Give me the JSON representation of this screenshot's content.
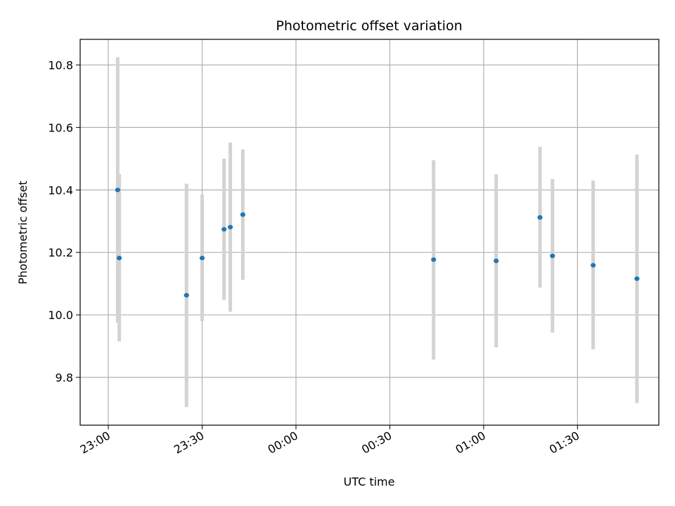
{
  "chart_data": {
    "type": "scatter",
    "title": "Photometric offset variation",
    "xlabel": "UTC time",
    "ylabel": "Photometric offset",
    "x_axis_type": "time",
    "xlim": [
      "22:51",
      "01:56"
    ],
    "ylim": [
      9.647,
      10.882
    ],
    "x_ticks": [
      "23:00",
      "23:30",
      "00:00",
      "00:30",
      "01:00",
      "01:30"
    ],
    "y_ticks": [
      9.8,
      10.0,
      10.2,
      10.4,
      10.6,
      10.8
    ],
    "y_tick_labels": [
      "9.8",
      "10.0",
      "10.2",
      "10.4",
      "10.6",
      "10.8"
    ],
    "grid": true,
    "point_color": "#1f77b4",
    "errorbar_color": "#d3d3d3",
    "points": [
      {
        "x": "23:03",
        "y": 10.4,
        "err_low": 9.975,
        "err_high": 10.825
      },
      {
        "x": "23:03:30",
        "y": 10.182,
        "err_low": 9.915,
        "err_high": 10.45
      },
      {
        "x": "23:25",
        "y": 10.063,
        "err_low": 9.705,
        "err_high": 10.42
      },
      {
        "x": "23:30",
        "y": 10.182,
        "err_low": 9.98,
        "err_high": 10.385
      },
      {
        "x": "23:37",
        "y": 10.274,
        "err_low": 10.048,
        "err_high": 10.5
      },
      {
        "x": "23:39",
        "y": 10.281,
        "err_low": 10.01,
        "err_high": 10.552
      },
      {
        "x": "23:43",
        "y": 10.321,
        "err_low": 10.112,
        "err_high": 10.53
      },
      {
        "x": "00:44",
        "y": 10.177,
        "err_low": 9.857,
        "err_high": 10.495
      },
      {
        "x": "01:04",
        "y": 10.173,
        "err_low": 9.896,
        "err_high": 10.45
      },
      {
        "x": "01:18",
        "y": 10.312,
        "err_low": 10.087,
        "err_high": 10.538
      },
      {
        "x": "01:22",
        "y": 10.189,
        "err_low": 9.943,
        "err_high": 10.435
      },
      {
        "x": "01:35",
        "y": 10.159,
        "err_low": 9.89,
        "err_high": 10.43
      },
      {
        "x": "01:49",
        "y": 10.116,
        "err_low": 9.718,
        "err_high": 10.513
      }
    ]
  }
}
